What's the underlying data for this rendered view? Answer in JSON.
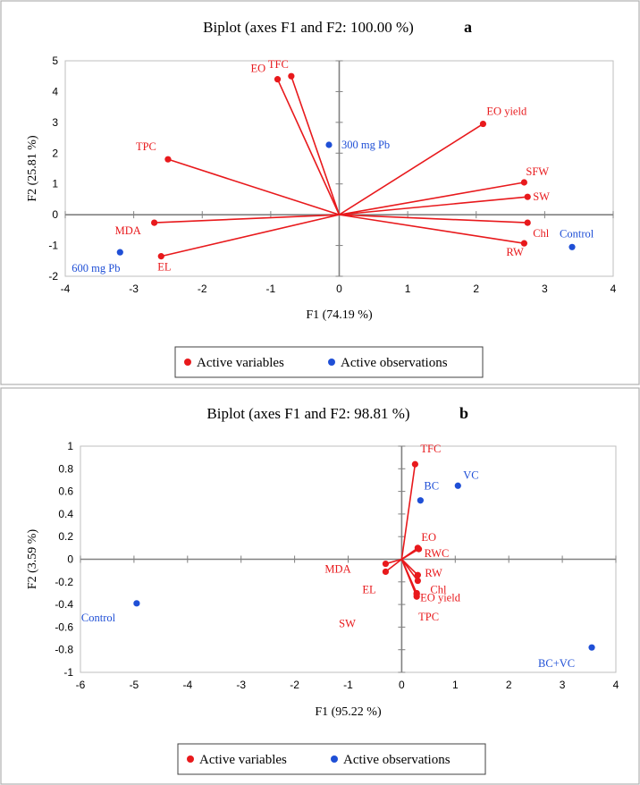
{
  "colors": {
    "variable": "#e8191c",
    "observation": "#1f4fd6",
    "axis": "#808080",
    "frame": "#bfbfbf"
  },
  "chart_data": [
    {
      "type": "scatter",
      "panel_letter": "a",
      "title": "Biplot (axes F1 and F2: 100.00 %)",
      "xlabel": "F1 (74.19 %)",
      "ylabel": "F2 (25.81 %)",
      "xlim": [
        -4,
        4
      ],
      "ylim": [
        -2,
        5
      ],
      "xticks": [
        "-4",
        "-3",
        "-2",
        "-1",
        "0",
        "1",
        "2",
        "3",
        "4"
      ],
      "yticks": [
        "-2",
        "-1",
        "0",
        "1",
        "2",
        "3",
        "4",
        "5"
      ],
      "grid": false,
      "variables": [
        {
          "name": "EO",
          "x": -0.9,
          "y": 4.4
        },
        {
          "name": "TFC",
          "x": -0.7,
          "y": 4.5
        },
        {
          "name": "EO yield",
          "x": 2.1,
          "y": 2.95
        },
        {
          "name": "TPC",
          "x": -2.5,
          "y": 1.8
        },
        {
          "name": "SFW",
          "x": 2.7,
          "y": 1.05
        },
        {
          "name": "SW",
          "x": 2.75,
          "y": 0.58
        },
        {
          "name": "Chl",
          "x": 2.75,
          "y": -0.26
        },
        {
          "name": "RW",
          "x": 2.7,
          "y": -0.93
        },
        {
          "name": "MDA",
          "x": -2.7,
          "y": -0.26
        },
        {
          "name": "EL",
          "x": -2.6,
          "y": -1.35
        }
      ],
      "observations": [
        {
          "name": "300 mg Pb",
          "x": -0.15,
          "y": 2.27
        },
        {
          "name": "Control",
          "x": 3.4,
          "y": -1.05
        },
        {
          "name": "600 mg Pb",
          "x": -3.2,
          "y": -1.22
        }
      ],
      "legend": {
        "variables": "Active variables",
        "observations": "Active observations",
        "position": "bottom-center"
      }
    },
    {
      "type": "scatter",
      "panel_letter": "b",
      "title": "Biplot (axes F1 and F2: 98.81 %)",
      "xlabel": "F1 (95.22 %)",
      "ylabel": "F2 (3.59 %)",
      "xlim": [
        -6,
        4
      ],
      "ylim": [
        -1,
        1
      ],
      "xticks": [
        "-6",
        "-5",
        "-4",
        "-3",
        "-2",
        "-1",
        "0",
        "1",
        "2",
        "3",
        "4"
      ],
      "yticks": [
        "-1",
        "-0.8",
        "-0.6",
        "-0.4",
        "-0.2",
        "0",
        "0.2",
        "0.4",
        "0.6",
        "0.8",
        "1"
      ],
      "grid": false,
      "variables": [
        {
          "name": "TFC",
          "x": 0.25,
          "y": 0.84
        },
        {
          "name": "EO",
          "x": 0.3,
          "y": 0.1
        },
        {
          "name": "RWC",
          "x": 0.32,
          "y": 0.09
        },
        {
          "name": "RW",
          "x": 0.3,
          "y": -0.14
        },
        {
          "name": "Chl",
          "x": 0.3,
          "y": -0.19
        },
        {
          "name": "EO yield",
          "x": 0.28,
          "y": -0.3
        },
        {
          "name": "TPC",
          "x": 0.28,
          "y": -0.33
        },
        {
          "name": "MDA",
          "x": -0.3,
          "y": -0.04
        },
        {
          "name": "EL",
          "x": -0.3,
          "y": -0.11
        },
        {
          "name": "SW",
          "x": 0.28,
          "y": -0.31
        }
      ],
      "observations": [
        {
          "name": "VC",
          "x": 1.05,
          "y": 0.65
        },
        {
          "name": "BC",
          "x": 0.35,
          "y": 0.52
        },
        {
          "name": "Control",
          "x": -4.95,
          "y": -0.39
        },
        {
          "name": "BC+VC",
          "x": 3.55,
          "y": -0.78
        }
      ],
      "legend": {
        "variables": "Active variables",
        "observations": "Active observations",
        "position": "bottom-center"
      }
    }
  ]
}
